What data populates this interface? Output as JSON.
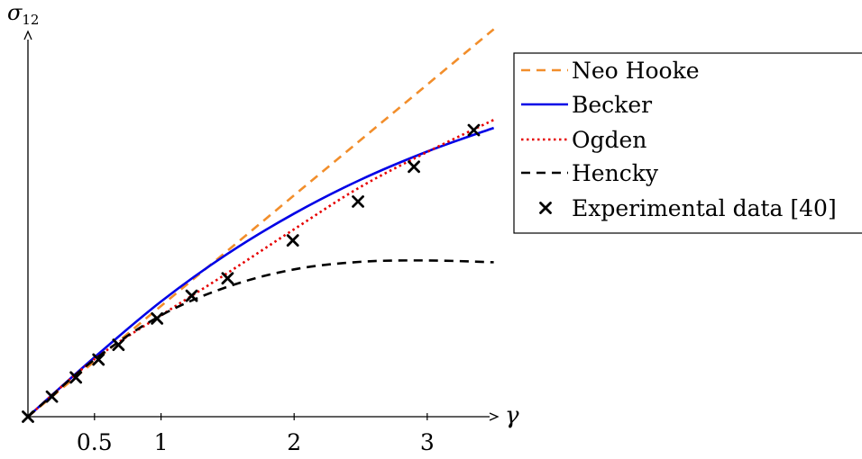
{
  "chart_data": {
    "type": "line",
    "title": "",
    "xlabel": "γ",
    "ylabel": "σ12",
    "ylabel_main": "σ",
    "ylabel_sub": "12",
    "xlim": [
      0,
      3.5
    ],
    "xticks": [
      0.5,
      1,
      2,
      3
    ],
    "xtick_labels": [
      "0.5",
      "1",
      "2",
      "3"
    ],
    "yticks": [],
    "legend_position": "right",
    "series": [
      {
        "name": "Neo Hooke",
        "style": "dashed",
        "color": "#f28e2b",
        "x": [
          0,
          3.5
        ],
        "y": [
          0,
          0.868
        ]
      },
      {
        "name": "Becker",
        "style": "solid",
        "color": "#0000e6",
        "x": [
          0,
          0.5,
          1.0,
          1.5,
          2.0,
          2.5,
          3.0,
          3.5
        ],
        "y": [
          0,
          0.133,
          0.258,
          0.365,
          0.455,
          0.531,
          0.594,
          0.647
        ]
      },
      {
        "name": "Ogden",
        "style": "dotted",
        "color": "#e60000",
        "x": [
          0,
          0.5,
          1.0,
          1.5,
          2.0,
          2.5,
          3.0,
          3.5
        ],
        "y": [
          0,
          0.129,
          0.227,
          0.322,
          0.42,
          0.515,
          0.593,
          0.665
        ]
      },
      {
        "name": "Hencky",
        "style": "dashed",
        "color": "#000000",
        "x": [
          0,
          0.5,
          1.0,
          1.5,
          2.0,
          2.5,
          3.0,
          3.5
        ],
        "y": [
          0,
          0.128,
          0.227,
          0.291,
          0.33,
          0.347,
          0.35,
          0.346
        ]
      },
      {
        "name": "Experimental data [40]",
        "style": "markers",
        "marker": "x",
        "color": "#000000",
        "x": [
          0,
          0.18,
          0.36,
          0.53,
          0.68,
          0.97,
          1.23,
          1.5,
          1.99,
          2.48,
          2.9,
          3.35
        ],
        "y": [
          0,
          0.045,
          0.088,
          0.128,
          0.161,
          0.22,
          0.271,
          0.31,
          0.395,
          0.482,
          0.56,
          0.642
        ]
      }
    ]
  }
}
